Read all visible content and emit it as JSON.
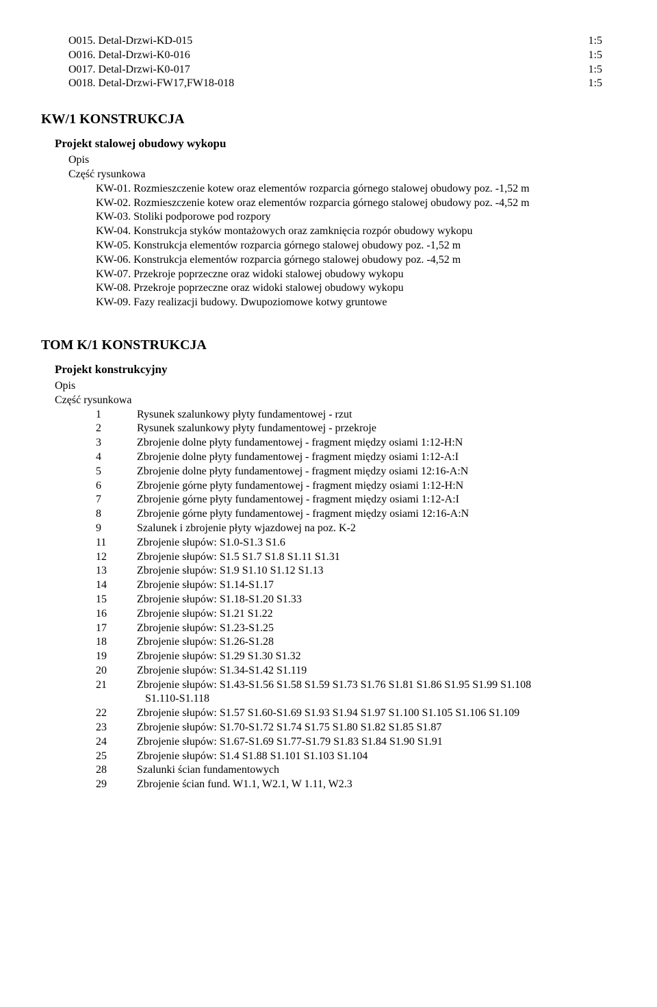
{
  "top_list": [
    {
      "code": "O015.",
      "name": "Detal-Drzwi-KD-015",
      "scale": "1:5"
    },
    {
      "code": "O016.",
      "name": "Detal-Drzwi-K0-016",
      "scale": "1:5"
    },
    {
      "code": "O017.",
      "name": "Detal-Drzwi-K0-017",
      "scale": "1:5"
    },
    {
      "code": "O018.",
      "name": "Detal-Drzwi-FW17,FW18-018",
      "scale": "1:5"
    }
  ],
  "kw1": {
    "title": "KW/1 KONSTRUKCJA",
    "subsection": "Projekt stalowej obudowy wykopu",
    "opis": "Opis",
    "czesc": "Część rysunkowa",
    "items": [
      "KW-01. Rozmieszczenie kotew oraz elementów rozparcia górnego stalowej obudowy poz. -1,52 m",
      "KW-02. Rozmieszczenie kotew oraz elementów rozparcia górnego stalowej obudowy poz. -4,52 m",
      "KW-03. Stoliki podporowe pod rozpory",
      "KW-04. Konstrukcja styków montażowych oraz zamknięcia rozpór obudowy wykopu",
      "KW-05. Konstrukcja elementów rozparcia górnego stalowej obudowy poz. -1,52 m",
      "KW-06. Konstrukcja elementów rozparcia górnego stalowej obudowy poz. -4,52 m",
      "KW-07. Przekroje poprzeczne oraz widoki stalowej obudowy wykopu",
      "KW-08. Przekroje poprzeczne oraz widoki stalowej obudowy wykopu",
      "KW-09. Fazy realizacji budowy. Dwupoziomowe kotwy gruntowe"
    ]
  },
  "tomk1": {
    "title": "TOM K/1 KONSTRUKCJA",
    "subsection": "Projekt konstrukcyjny",
    "opis": "Opis",
    "czesc": "Część rysunkowa",
    "rows": [
      {
        "n": "1",
        "t": "Rysunek szalunkowy płyty fundamentowej - rzut"
      },
      {
        "n": "2",
        "t": "Rysunek szalunkowy płyty fundamentowej - przekroje"
      },
      {
        "n": "3",
        "t": "Zbrojenie dolne płyty fundamentowej - fragment między osiami 1:12-H:N"
      },
      {
        "n": "4",
        "t": "Zbrojenie dolne płyty fundamentowej - fragment między osiami 1:12-A:I"
      },
      {
        "n": "5",
        "t": "Zbrojenie dolne płyty fundamentowej - fragment między osiami 12:16-A:N"
      },
      {
        "n": "6",
        "t": "Zbrojenie górne płyty fundamentowej - fragment między osiami 1:12-H:N"
      },
      {
        "n": "7",
        "t": "Zbrojenie górne płyty fundamentowej - fragment między osiami 1:12-A:I"
      },
      {
        "n": "8",
        "t": "Zbrojenie górne płyty fundamentowej - fragment między osiami 12:16-A:N"
      },
      {
        "n": "9",
        "t": "Szalunek i zbrojenie płyty wjazdowej na poz. K-2"
      },
      {
        "n": "11",
        "t": "Zbrojenie słupów: S1.0-S1.3 S1.6"
      },
      {
        "n": "12",
        "t": "Zbrojenie słupów: S1.5 S1.7 S1.8 S1.11 S1.31"
      },
      {
        "n": "13",
        "t": "Zbrojenie słupów: S1.9 S1.10 S1.12  S1.13"
      },
      {
        "n": "14",
        "t": "Zbrojenie słupów: S1.14-S1.17"
      },
      {
        "n": "15",
        "t": "Zbrojenie słupów: S1.18-S1.20 S1.33"
      },
      {
        "n": "16",
        "t": "Zbrojenie słupów: S1.21 S1.22"
      },
      {
        "n": "17",
        "t": "Zbrojenie słupów: S1.23-S1.25"
      },
      {
        "n": "18",
        "t": "Zbrojenie słupów: S1.26-S1.28"
      },
      {
        "n": "19",
        "t": "Zbrojenie słupów: S1.29 S1.30 S1.32"
      },
      {
        "n": "20",
        "t": "Zbrojenie słupów: S1.34-S1.42 S1.119"
      },
      {
        "n": "21",
        "t": "Zbrojenie słupów: S1.43-S1.56 S1.58 S1.59 S1.73 S1.76 S1.81 S1.86 S1.95 S1.99 S1.108"
      },
      {
        "n": "",
        "t": "S1.110-S1.118",
        "indent": true
      },
      {
        "n": "22",
        "t": "Zbrojenie słupów: S1.57 S1.60-S1.69 S1.93 S1.94 S1.97 S1.100 S1.105 S1.106 S1.109"
      },
      {
        "n": "23",
        "t": "Zbrojenie słupów: S1.70-S1.72 S1.74 S1.75 S1.80 S1.82 S1.85 S1.87"
      },
      {
        "n": "24",
        "t": "Zbrojenie słupów: S1.67-S1.69 S1.77-S1.79 S1.83 S1.84 S1.90 S1.91"
      },
      {
        "n": "25",
        "t": "Zbrojenie słupów: S1.4 S1.88 S1.101 S1.103 S1.104"
      },
      {
        "n": "28",
        "t": "Szalunki ścian fundamentowych"
      },
      {
        "n": "29",
        "t": "Zbrojenie ścian fund. W1.1, W2.1, W 1.11, W2.3"
      }
    ]
  }
}
